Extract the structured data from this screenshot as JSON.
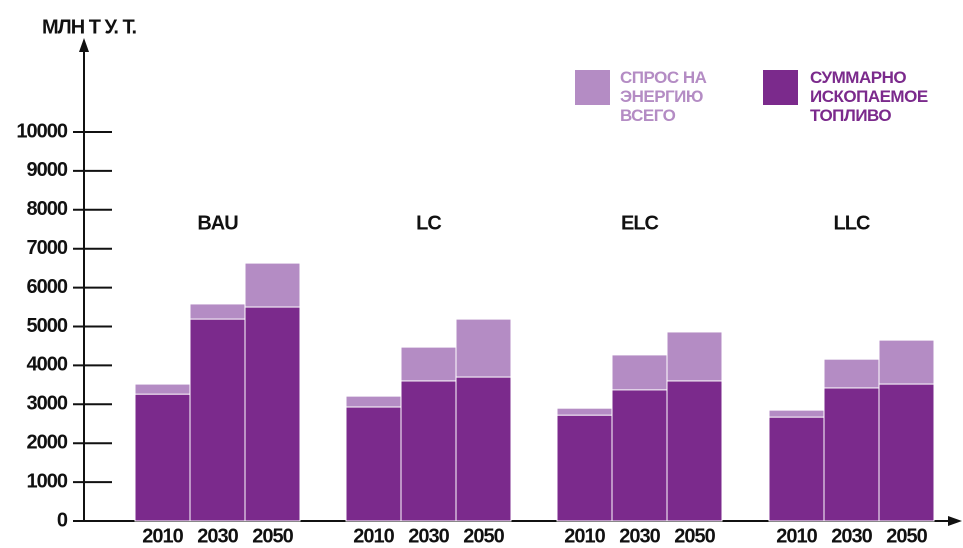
{
  "chart_data": {
    "type": "overlap-bar",
    "y_label": "МЛН Т У. Т.",
    "groups": [
      "BAU",
      "LC",
      "ELC",
      "LLC"
    ],
    "categories": [
      "2010",
      "2030",
      "2050",
      "2010",
      "2030",
      "2050",
      "2010",
      "2030",
      "2050",
      "2010",
      "2030",
      "2050"
    ],
    "series": [
      {
        "name": "СПРОС НА ЭНЕРГИЮ ВСЕГО",
        "color": "#b48cc4",
        "values": [
          3520,
          5580,
          6630,
          3210,
          4470,
          5190,
          2900,
          4270,
          4860,
          2850,
          4160,
          4650
        ]
      },
      {
        "name": "СУММАРНО ИСКОПАЕМОЕ ТОПЛИВО",
        "color": "#7b2a8c",
        "values": [
          3260,
          5190,
          5500,
          2930,
          3600,
          3700,
          2720,
          3370,
          3600,
          2670,
          3420,
          3520
        ]
      }
    ],
    "ylim": [
      0,
      12000
    ],
    "yticks": [
      0,
      1000,
      2000,
      3000,
      4000,
      5000,
      6000,
      7000,
      8000,
      9000,
      10000
    ]
  }
}
